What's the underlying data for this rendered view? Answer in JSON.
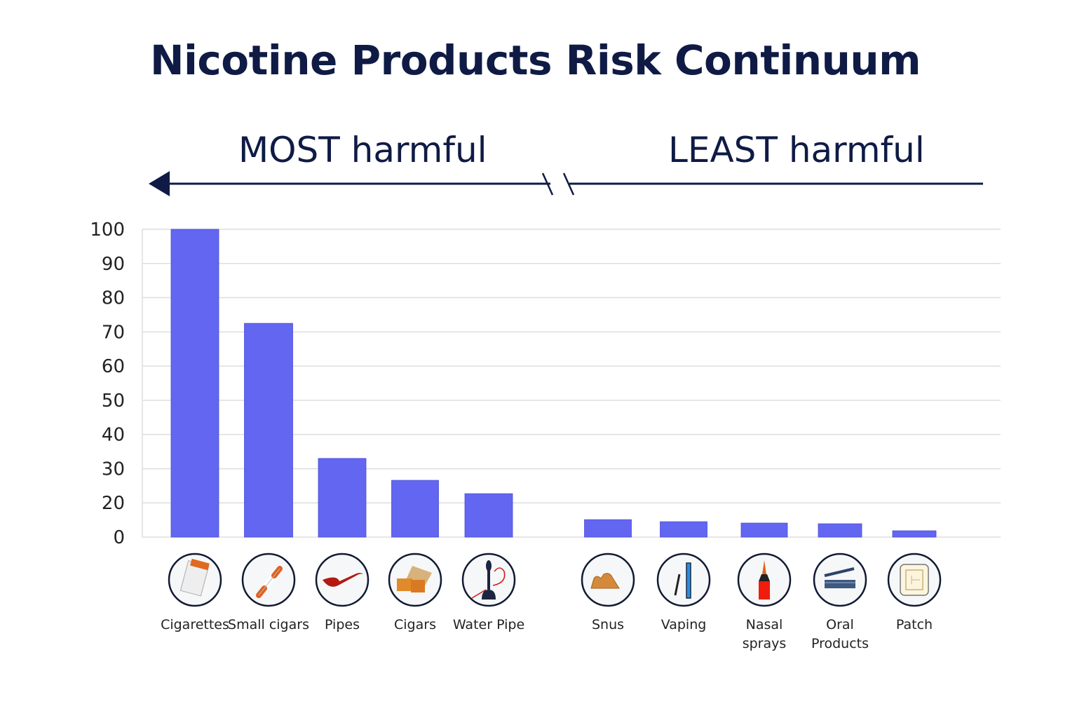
{
  "chart_data": {
    "type": "bar",
    "title": "Nicotine Products Risk Continuum",
    "direction_labels": {
      "left": "MOST harmful",
      "right": "LEAST harmful"
    },
    "categories": [
      "Cigarettes",
      "Small cigars",
      "Pipes",
      "Cigars",
      "Water Pipe",
      "Snus",
      "Vaping",
      "Nasal sprays",
      "Oral Products",
      "Patch"
    ],
    "category_lines": [
      [
        "Cigarettes"
      ],
      [
        "Small cigars"
      ],
      [
        "Pipes"
      ],
      [
        "Cigars"
      ],
      [
        "Water Pipe"
      ],
      [
        "Snus"
      ],
      [
        "Vaping"
      ],
      [
        "Nasal",
        "sprays"
      ],
      [
        "Oral",
        "Products"
      ],
      [
        "Patch"
      ]
    ],
    "icons": [
      "cigarette-pack-icon",
      "small-cigar-icon",
      "pipe-icon",
      "cigar-box-icon",
      "water-pipe-icon",
      "snus-pouch-icon",
      "vape-pen-icon",
      "nasal-spray-icon",
      "oral-product-icon",
      "patch-icon"
    ],
    "values": [
      100,
      72.5,
      33,
      26.6,
      22.7,
      10.2,
      9,
      8.2,
      7.8,
      3.7
    ],
    "y_ticks": [
      0,
      20,
      30,
      40,
      50,
      60,
      70,
      80,
      90,
      100
    ],
    "ylim": [
      0,
      100
    ],
    "xlabel": "",
    "ylabel": "",
    "grid": true,
    "bar_color": "#6366f1",
    "title_color": "#0f1b45"
  }
}
